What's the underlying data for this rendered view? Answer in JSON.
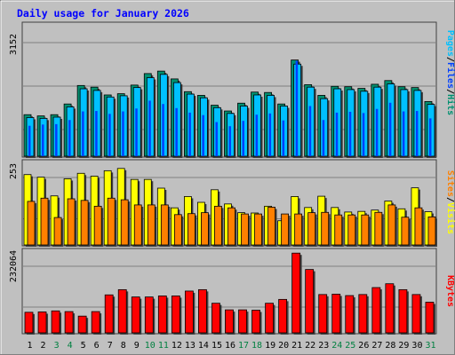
{
  "chart_data": [
    {
      "type": "bar",
      "title": "Daily usage for January 2026",
      "panel": "pages-files-hits",
      "ymax_label": "3152",
      "ylim": [
        0,
        3152
      ],
      "legend": [
        {
          "name": "Pages",
          "color": "#00c0ff"
        },
        {
          "name": "Files",
          "color": "#0040ff"
        },
        {
          "name": "Hits",
          "color": "#009070"
        }
      ],
      "legend_sep": "/",
      "categories": [
        "1",
        "2",
        "3",
        "4",
        "5",
        "6",
        "7",
        "8",
        "9",
        "10",
        "11",
        "12",
        "13",
        "14",
        "15",
        "16",
        "17",
        "18",
        "19",
        "20",
        "21",
        "22",
        "23",
        "24",
        "25",
        "26",
        "27",
        "28",
        "29",
        "30",
        "31"
      ],
      "weekend_days": [
        "3",
        "4",
        "10",
        "11",
        "17",
        "18",
        "24",
        "25",
        "31"
      ],
      "series": [
        {
          "name": "Hits",
          "values": [
            1010,
            980,
            1010,
            1270,
            1720,
            1680,
            1490,
            1520,
            1730,
            2010,
            2070,
            1880,
            1570,
            1480,
            1240,
            1100,
            1290,
            1560,
            1550,
            1270,
            2340,
            1740,
            1480,
            1700,
            1690,
            1650,
            1750,
            1840,
            1690,
            1670,
            1330
          ]
        },
        {
          "name": "Files",
          "values": [
            740,
            770,
            780,
            880,
            1090,
            1100,
            1030,
            1090,
            1160,
            1350,
            1270,
            1170,
            1060,
            1000,
            830,
            730,
            860,
            1010,
            1040,
            870,
            2320,
            1220,
            880,
            1060,
            1080,
            1050,
            1150,
            1300,
            1090,
            1100,
            920
          ]
        },
        {
          "name": "Pages",
          "values": [
            940,
            920,
            950,
            1200,
            1640,
            1600,
            1440,
            1470,
            1670,
            1910,
            1990,
            1790,
            1510,
            1420,
            1180,
            1040,
            1220,
            1490,
            1480,
            1220,
            2240,
            1680,
            1400,
            1640,
            1620,
            1580,
            1680,
            1760,
            1620,
            1600,
            1260
          ]
        }
      ]
    },
    {
      "type": "bar",
      "panel": "sites-visits",
      "ymax_label": "253",
      "ylim": [
        0,
        253
      ],
      "legend": [
        {
          "name": "Sites",
          "color": "#ff8000"
        },
        {
          "name": "Visits",
          "color": "#ffff00"
        }
      ],
      "legend_sep": "/",
      "categories": [
        "1",
        "2",
        "3",
        "4",
        "5",
        "6",
        "7",
        "8",
        "9",
        "10",
        "11",
        "12",
        "13",
        "14",
        "15",
        "16",
        "17",
        "18",
        "19",
        "20",
        "21",
        "22",
        "23",
        "24",
        "25",
        "26",
        "27",
        "28",
        "29",
        "30",
        "31"
      ],
      "series": [
        {
          "name": "Visits",
          "values": [
            218,
            210,
            152,
            205,
            222,
            213,
            230,
            237,
            203,
            203,
            176,
            115,
            150,
            132,
            171,
            127,
            100,
            99,
            120,
            75,
            150,
            116,
            151,
            116,
            102,
            104,
            108,
            136,
            112,
            177,
            103
          ]
        },
        {
          "name": "Sites",
          "values": [
            135,
            145,
            85,
            143,
            138,
            120,
            145,
            140,
            124,
            124,
            124,
            94,
            97,
            100,
            120,
            115,
            96,
            96,
            117,
            96,
            96,
            100,
            101,
            93,
            93,
            93,
            101,
            124,
            86,
            115,
            87
          ]
        }
      ]
    },
    {
      "type": "bar",
      "panel": "kbytes",
      "ymax_label": "232064",
      "ylim": [
        0,
        232064
      ],
      "legend": [
        {
          "name": "KBytes",
          "color": "#ff0000"
        }
      ],
      "categories": [
        "1",
        "2",
        "3",
        "4",
        "5",
        "6",
        "7",
        "8",
        "9",
        "10",
        "11",
        "12",
        "13",
        "14",
        "15",
        "16",
        "17",
        "18",
        "19",
        "20",
        "21",
        "22",
        "23",
        "24",
        "25",
        "26",
        "27",
        "28",
        "29",
        "30",
        "31"
      ],
      "series": [
        {
          "name": "KBytes",
          "values": [
            59000,
            60000,
            63000,
            61000,
            48000,
            61000,
            109000,
            124000,
            103000,
            103000,
            106000,
            106000,
            120000,
            124000,
            85000,
            66000,
            66000,
            65000,
            85000,
            96000,
            229000,
            182000,
            110000,
            111000,
            107000,
            110000,
            130000,
            141000,
            124000,
            110000,
            88000
          ]
        }
      ]
    }
  ],
  "colors": {
    "background": "#c0c0c0",
    "plot_bg": "#ffffff",
    "title": "#0000ff",
    "weekday_label": "#000000",
    "weekend_label": "#008040",
    "grid": "#808080"
  }
}
